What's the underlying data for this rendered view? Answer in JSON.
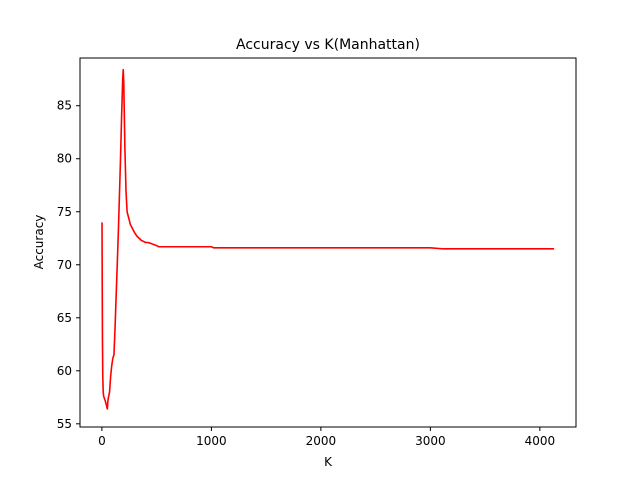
{
  "chart_data": {
    "type": "line",
    "title": "Accuracy vs K(Manhattan)",
    "xlabel": "K",
    "ylabel": "Accuracy",
    "xlim": [
      -200,
      4330
    ],
    "ylim": [
      54.7,
      89.5
    ],
    "xticks": [
      0,
      1000,
      2000,
      3000,
      4000
    ],
    "xtick_labels": [
      "0",
      "1000",
      "2000",
      "3000",
      "4000"
    ],
    "yticks": [
      55,
      60,
      65,
      70,
      75,
      80,
      85
    ],
    "ytick_labels": [
      "55",
      "60",
      "65",
      "70",
      "75",
      "80",
      "85"
    ],
    "grid": false,
    "legend": "none",
    "series": [
      {
        "color": "#ff0000",
        "x": [
          1,
          3,
          5,
          8,
          12,
          16,
          20,
          25,
          30,
          35,
          40,
          45,
          50,
          55,
          60,
          70,
          80,
          90,
          100,
          110,
          120,
          130,
          140,
          150,
          160,
          170,
          180,
          190,
          195,
          200,
          205,
          210,
          215,
          220,
          230,
          240,
          250,
          260,
          280,
          300,
          320,
          340,
          360,
          380,
          400,
          420,
          450,
          500,
          520,
          600,
          800,
          1000,
          1020,
          1500,
          2000,
          2500,
          3000,
          3120,
          3500,
          4000,
          4130
        ],
        "y": [
          74.0,
          68.0,
          63.0,
          59.5,
          58.0,
          57.6,
          57.5,
          57.3,
          57.2,
          57.0,
          56.8,
          56.6,
          56.4,
          57.2,
          57.5,
          58.0,
          59.5,
          60.5,
          61.2,
          61.5,
          64.0,
          67.0,
          70.0,
          73.0,
          76.5,
          80.0,
          84.0,
          87.5,
          88.4,
          87.0,
          84.0,
          81.0,
          79.0,
          77.0,
          75.0,
          74.6,
          74.2,
          73.8,
          73.4,
          73.0,
          72.7,
          72.5,
          72.3,
          72.2,
          72.1,
          72.1,
          72.0,
          71.8,
          71.7,
          71.7,
          71.7,
          71.7,
          71.6,
          71.6,
          71.6,
          71.6,
          71.6,
          71.5,
          71.5,
          71.5,
          71.5
        ]
      }
    ]
  }
}
